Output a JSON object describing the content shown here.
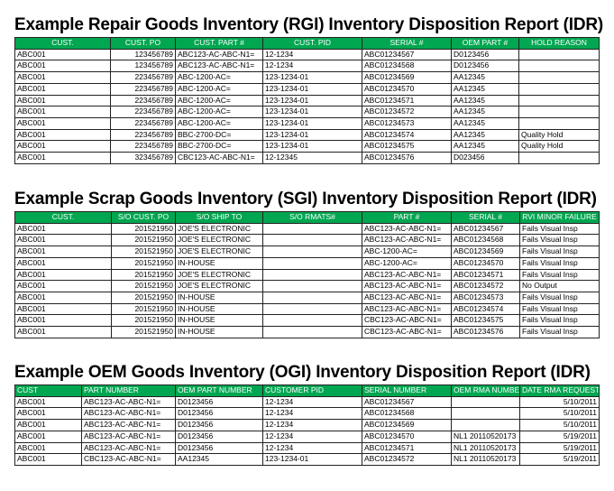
{
  "sections": [
    {
      "title": "Example Repair Goods Inventory (RGI) Inventory Disposition Report (IDR)",
      "headers": [
        "CUST.",
        "CUST. PO",
        "CUST. PART #",
        "CUST. PID",
        "SERIAL #",
        "OEM PART #",
        "HOLD REASON"
      ],
      "rows": [
        [
          "ABC001",
          "123456789",
          "ABC123-AC-ABC-N1=",
          "12-1234",
          "ABC01234567",
          "D0123456",
          null
        ],
        [
          "ABC001",
          "123456789",
          "ABC123-AC-ABC-N1=",
          "12-1234",
          "ABC01234568",
          "D0123456",
          null
        ],
        [
          "ABC001",
          "223456789",
          "ABC-1200-AC=",
          "123-1234-01",
          "ABC01234569",
          "AA12345",
          null
        ],
        [
          "ABC001",
          "223456789",
          "ABC-1200-AC=",
          "123-1234-01",
          "ABC01234570",
          "AA12345",
          null
        ],
        [
          "ABC001",
          "223456789",
          "ABC-1200-AC=",
          "123-1234-01",
          "ABC01234571",
          "AA12345",
          null
        ],
        [
          "ABC001",
          "223456789",
          "ABC-1200-AC=",
          "123-1234-01",
          "ABC01234572",
          "AA12345",
          null
        ],
        [
          "ABC001",
          "223456789",
          "ABC-1200-AC=",
          "123-1234-01",
          "ABC01234573",
          "AA12345",
          null
        ],
        [
          "ABC001",
          "223456789",
          "BBC-2700-DC=",
          "123-1234-01",
          "ABC01234574",
          "AA12345",
          "Quality Hold"
        ],
        [
          "ABC001",
          "223456789",
          "BBC-2700-DC=",
          "123-1234-01",
          "ABC01234575",
          "AA12345",
          "Quality Hold"
        ],
        [
          "ABC001",
          "323456789",
          "CBC123-AC-ABC-N1=",
          "12-12345",
          "ABC01234576",
          "D023456",
          null
        ]
      ]
    },
    {
      "title": "Example Scrap Goods Inventory (SGI) Inventory Disposition Report (IDR)",
      "headers": [
        "CUST.",
        "S/O CUST. PO",
        "S/O SHIP TO",
        "S/O RMATS#",
        "PART #",
        "SERIAL #",
        "RVI MINOR FAILURE"
      ],
      "rows": [
        [
          "ABC001",
          "201521950",
          "JOE'S ELECTRONIC",
          null,
          "ABC123-AC-ABC-N1=",
          "ABC01234567",
          "Fails Visual Insp"
        ],
        [
          "ABC001",
          "201521950",
          "JOE'S ELECTRONIC",
          null,
          "ABC123-AC-ABC-N1=",
          "ABC01234568",
          "Fails Visual Insp"
        ],
        [
          "ABC001",
          "201521950",
          "JOE'S ELECTRONIC",
          null,
          "ABC-1200-AC=",
          "ABC01234569",
          "Fails Visual Insp"
        ],
        [
          "ABC001",
          "201521950",
          "IN-HOUSE",
          null,
          "ABC-1200-AC=",
          "ABC01234570",
          "Fails Visual Insp"
        ],
        [
          "ABC001",
          "201521950",
          "JOE'S ELECTRONIC",
          null,
          "ABC123-AC-ABC-N1=",
          "ABC01234571",
          "Fails Visual Insp"
        ],
        [
          "ABC001",
          "201521950",
          "JOE'S ELECTRONIC",
          null,
          "ABC123-AC-ABC-N1=",
          "ABC01234572",
          "No Output"
        ],
        [
          "ABC001",
          "201521950",
          "IN-HOUSE",
          null,
          "ABC123-AC-ABC-N1=",
          "ABC01234573",
          "Fails Visual Insp"
        ],
        [
          "ABC001",
          "201521950",
          "IN-HOUSE",
          null,
          "ABC123-AC-ABC-N1=",
          "ABC01234574",
          "Fails Visual Insp"
        ],
        [
          "ABC001",
          "201521950",
          "IN-HOUSE",
          null,
          "CBC123-AC-ABC-N1=",
          "ABC01234575",
          "Fails Visual Insp"
        ],
        [
          "ABC001",
          "201521950",
          "IN-HOUSE",
          null,
          "CBC123-AC-ABC-N1=",
          "ABC01234576",
          "Fails Visual Insp"
        ]
      ]
    },
    {
      "title": "Example OEM Goods Inventory (OGI) Inventory Disposition Report (IDR)",
      "headers": [
        "CUST",
        "PART NUMBER",
        "OEM PART NUMBER",
        "CUSTOMER PID",
        "SERIAL NUMBER",
        "OEM RMA NUMBE",
        "DATE RMA REQUESTE"
      ],
      "rows": [
        [
          "ABC001",
          "ABC123-AC-ABC-N1=",
          "D0123456",
          "12-1234",
          "ABC01234567",
          null,
          "5/10/2011"
        ],
        [
          "ABC001",
          "ABC123-AC-ABC-N1=",
          "D0123456",
          "12-1234",
          "ABC01234568",
          null,
          "5/10/2011"
        ],
        [
          "ABC001",
          "ABC123-AC-ABC-N1=",
          "D0123456",
          "12-1234",
          "ABC01234569",
          null,
          "5/10/2011"
        ],
        [
          "ABC001",
          "ABC123-AC-ABC-N1=",
          "D0123456",
          "12-1234",
          "ABC01234570",
          "NL1 20110520173",
          "5/19/2011"
        ],
        [
          "ABC001",
          "ABC123-AC-ABC-N1=",
          "D0123456",
          "12-1234",
          "ABC01234571",
          "NL1 20110520173",
          "5/19/2011"
        ],
        [
          "ABC001",
          "CBC123-AC-ABC-N1=",
          "AA12345",
          "123-1234-01",
          "ABC01234572",
          "NL1 20110520173",
          "5/19/2011"
        ]
      ]
    }
  ]
}
